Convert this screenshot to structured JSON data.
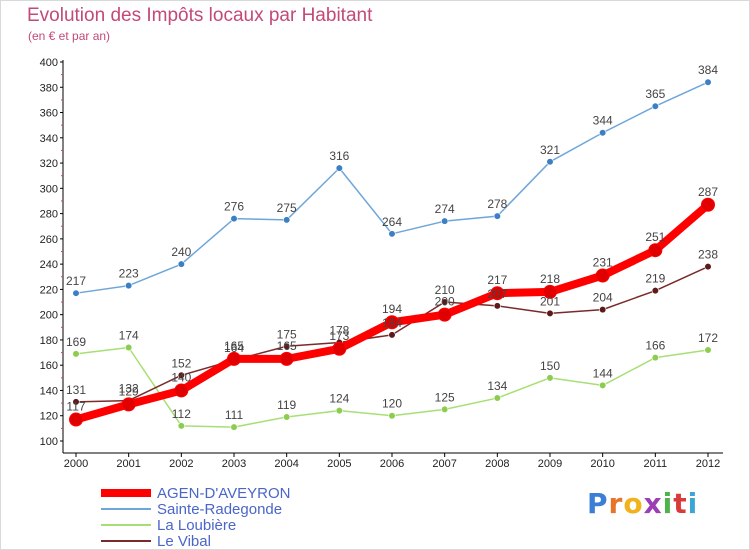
{
  "title": "Evolution des Impôts locaux par Habitant",
  "subtitle": "(en € et par an)",
  "logo_text": "Proxiti",
  "logo_colors": [
    "#3a7fd5",
    "#e8742a",
    "#f2b21c",
    "#9c3fb5",
    "#4db34a",
    "#d93b3b",
    "#3aa6d6"
  ],
  "chart_data": {
    "type": "line",
    "x": [
      "2000",
      "2001",
      "2002",
      "2003",
      "2004",
      "2005",
      "2006",
      "2007",
      "2008",
      "2009",
      "2010",
      "2011",
      "2012"
    ],
    "ylim": [
      100,
      400
    ],
    "yticks": [
      100,
      120,
      140,
      160,
      180,
      200,
      220,
      240,
      260,
      280,
      300,
      320,
      340,
      360,
      380,
      400
    ],
    "grid": false,
    "legend_position": "bottom-left",
    "series": [
      {
        "name": "AGEN-D'AVEYRON",
        "color": "#ff0000",
        "point_color": "#e00000",
        "values": [
          117,
          129,
          140,
          165,
          165,
          173,
          194,
          200,
          217,
          218,
          231,
          251,
          287
        ]
      },
      {
        "name": "Sainte-Radegonde",
        "color": "#6fa6d9",
        "point_color": "#3d7fc4",
        "values": [
          217,
          223,
          240,
          276,
          275,
          316,
          264,
          274,
          278,
          321,
          344,
          365,
          384
        ]
      },
      {
        "name": "La Loubière",
        "color": "#a8df74",
        "point_color": "#8ccc4e",
        "values": [
          169,
          174,
          112,
          111,
          119,
          124,
          120,
          125,
          134,
          150,
          144,
          166,
          172
        ]
      },
      {
        "name": "Le Vibal",
        "color": "#7a2a2a",
        "point_color": "#5c1a1a",
        "values": [
          131,
          132,
          152,
          164,
          175,
          178,
          184,
          210,
          207,
          201,
          204,
          219,
          238
        ]
      }
    ]
  }
}
